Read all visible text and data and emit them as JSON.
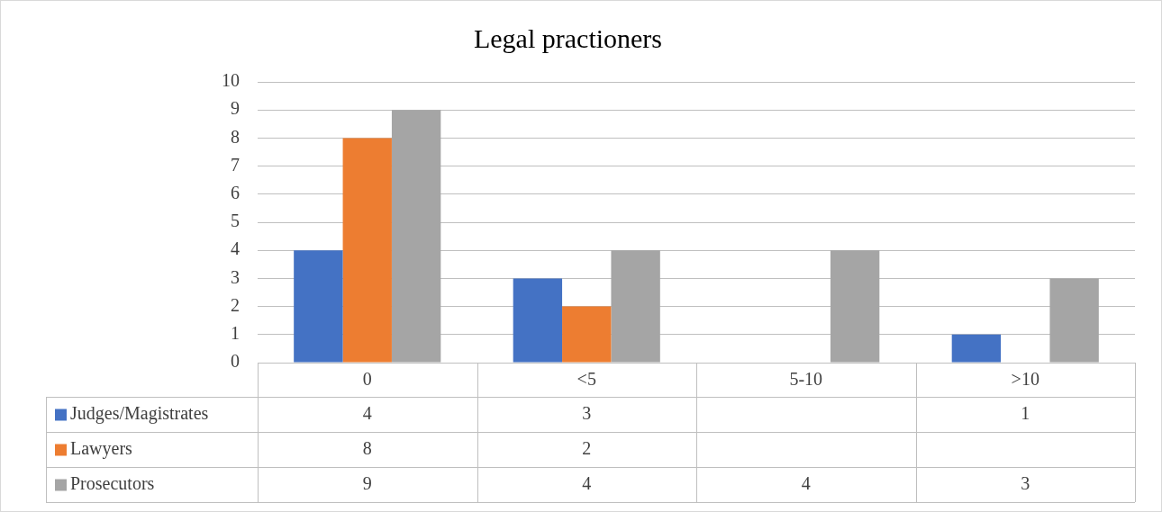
{
  "chart_data": {
    "type": "bar",
    "title": "Legal practioners",
    "categories": [
      "0",
      "<5",
      "5-10",
      ">10"
    ],
    "series": [
      {
        "name": "Judges/Magistrates",
        "color": "#4472c4",
        "values": [
          4,
          3,
          null,
          1
        ]
      },
      {
        "name": "Lawyers",
        "color": "#ed7d31",
        "values": [
          8,
          2,
          null,
          null
        ]
      },
      {
        "name": "Prosecutors",
        "color": "#a5a5a5",
        "values": [
          9,
          4,
          4,
          3
        ]
      }
    ],
    "ylim": [
      0,
      10
    ],
    "yticks": [
      0,
      1,
      2,
      3,
      4,
      5,
      6,
      7,
      8,
      9,
      10
    ],
    "grid": "y",
    "legend": "bottom",
    "data_labels": true
  }
}
